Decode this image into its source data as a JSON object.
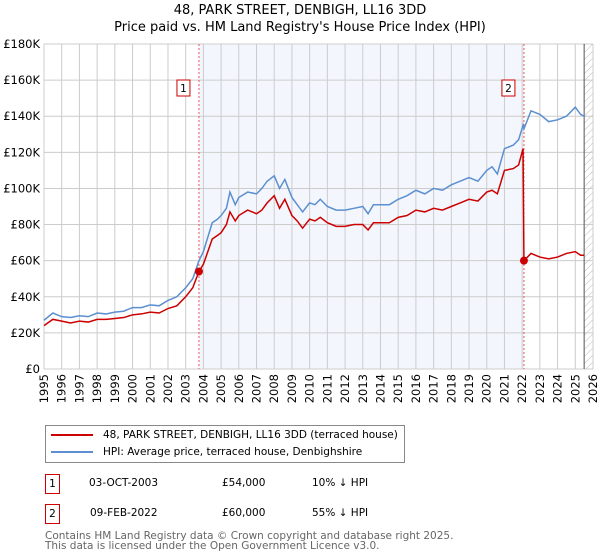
{
  "title": "48, PARK STREET, DENBIGH, LL16 3DD",
  "subtitle": "Price paid vs. HM Land Registry's House Price Index (HPI)",
  "chart_data": {
    "type": "line",
    "ylim": [
      0,
      180000
    ],
    "xlim": [
      1995,
      2026
    ],
    "yticks": [
      {
        "v": 0,
        "l": "£0"
      },
      {
        "v": 20000,
        "l": "£20K"
      },
      {
        "v": 40000,
        "l": "£40K"
      },
      {
        "v": 60000,
        "l": "£60K"
      },
      {
        "v": 80000,
        "l": "£80K"
      },
      {
        "v": 100000,
        "l": "£100K"
      },
      {
        "v": 120000,
        "l": "£120K"
      },
      {
        "v": 140000,
        "l": "£140K"
      },
      {
        "v": 160000,
        "l": "£160K"
      },
      {
        "v": 180000,
        "l": "£180K"
      }
    ],
    "xticks": [
      "1995",
      "1996",
      "1997",
      "1998",
      "1999",
      "2000",
      "2001",
      "2002",
      "2003",
      "2004",
      "2005",
      "2006",
      "2007",
      "2008",
      "2009",
      "2010",
      "2011",
      "2012",
      "2013",
      "2014",
      "2015",
      "2016",
      "2017",
      "2018",
      "2019",
      "2020",
      "2021",
      "2022",
      "2023",
      "2024",
      "2025",
      "2026"
    ],
    "series": [
      {
        "name": "48, PARK STREET, DENBIGH, LL16 3DD (terraced house)",
        "color": "#cc0000",
        "x": [
          1995,
          1995.5,
          1996,
          1996.5,
          1997,
          1997.5,
          1998,
          1998.5,
          1999,
          1999.5,
          2000,
          2000.5,
          2001,
          2001.5,
          2002,
          2002.5,
          2003,
          2003.4,
          2003.75,
          2004,
          2004.5,
          2004.8,
          2005,
          2005.3,
          2005.5,
          2005.8,
          2006,
          2006.5,
          2007,
          2007.3,
          2007.6,
          2008,
          2008.3,
          2008.6,
          2009,
          2009.3,
          2009.6,
          2010,
          2010.3,
          2010.6,
          2011,
          2011.5,
          2012,
          2012.5,
          2013,
          2013.3,
          2013.6,
          2014,
          2014.5,
          2015,
          2015.5,
          2016,
          2016.5,
          2017,
          2017.5,
          2018,
          2018.5,
          2019,
          2019.5,
          2020,
          2020.3,
          2020.6,
          2021,
          2021.5,
          2021.8,
          2022.05,
          2022.1,
          2022.5,
          2023,
          2023.5,
          2024,
          2024.5,
          2025,
          2025.3,
          2025.5
        ],
        "y": [
          24000,
          27500,
          26500,
          25500,
          26500,
          26000,
          27500,
          27500,
          28000,
          28500,
          30000,
          30500,
          31500,
          31000,
          33500,
          35000,
          40000,
          45000,
          54000,
          58000,
          72000,
          74000,
          75500,
          80000,
          87000,
          82000,
          85000,
          88000,
          86000,
          88000,
          92000,
          96000,
          89000,
          94000,
          85000,
          82000,
          78000,
          83000,
          82000,
          84000,
          81000,
          79000,
          79000,
          80000,
          80000,
          77000,
          81000,
          81000,
          81000,
          84000,
          85000,
          88000,
          87000,
          89000,
          88000,
          90000,
          92000,
          94000,
          93000,
          98000,
          99000,
          97000,
          110000,
          111000,
          113000,
          122000,
          60000,
          64000,
          62000,
          61000,
          62000,
          64000,
          65000,
          63000,
          63000
        ]
      },
      {
        "name": "HPI: Average price, terraced house, Denbighshire",
        "color": "#5b8fd0",
        "x": [
          1995,
          1995.5,
          1996,
          1996.5,
          1997,
          1997.5,
          1998,
          1998.5,
          1999,
          1999.5,
          2000,
          2000.5,
          2001,
          2001.5,
          2002,
          2002.5,
          2003,
          2003.4,
          2003.75,
          2004,
          2004.5,
          2004.8,
          2005,
          2005.3,
          2005.5,
          2005.8,
          2006,
          2006.5,
          2007,
          2007.3,
          2007.6,
          2008,
          2008.3,
          2008.6,
          2009,
          2009.3,
          2009.6,
          2010,
          2010.3,
          2010.6,
          2011,
          2011.5,
          2012,
          2012.5,
          2013,
          2013.3,
          2013.6,
          2014,
          2014.5,
          2015,
          2015.5,
          2016,
          2016.5,
          2017,
          2017.5,
          2018,
          2018.5,
          2019,
          2019.5,
          2020,
          2020.3,
          2020.6,
          2021,
          2021.5,
          2021.8,
          2022.05,
          2022.1,
          2022.5,
          2023,
          2023.5,
          2024,
          2024.5,
          2025,
          2025.3,
          2025.5
        ],
        "y": [
          27000,
          31000,
          29000,
          28500,
          29500,
          29000,
          31000,
          30500,
          31500,
          32000,
          34000,
          34000,
          35500,
          35000,
          38000,
          40000,
          45000,
          50000,
          60000,
          65000,
          81000,
          83000,
          85000,
          89000,
          98000,
          91000,
          95000,
          98000,
          97000,
          100000,
          104000,
          107000,
          100000,
          105000,
          95000,
          91000,
          87000,
          92000,
          91000,
          94000,
          90000,
          88000,
          88000,
          89000,
          90000,
          86000,
          91000,
          91000,
          91000,
          94000,
          96000,
          99000,
          97000,
          100000,
          99000,
          102000,
          104000,
          106000,
          104000,
          110000,
          112000,
          108000,
          122000,
          124000,
          127000,
          135000,
          133000,
          143000,
          141000,
          137000,
          138000,
          140000,
          145000,
          141000,
          140000
        ]
      }
    ],
    "annotations": [
      {
        "label": "1",
        "x": 2003.75,
        "y": 54000
      },
      {
        "label": "2",
        "x": 2022.1,
        "y": 60000
      }
    ],
    "shaded_range": [
      2003.75,
      2022.1
    ],
    "hatched_from": 2025.5
  },
  "transactions": [
    {
      "num": "1",
      "date": "03-OCT-2003",
      "price": "£54,000",
      "hpi": "10% ↓ HPI"
    },
    {
      "num": "2",
      "date": "09-FEB-2022",
      "price": "£60,000",
      "hpi": "55% ↓ HPI"
    }
  ],
  "footer": [
    "Contains HM Land Registry data © Crown copyright and database right 2025.",
    "This data is licensed under the Open Government Licence v3.0."
  ]
}
